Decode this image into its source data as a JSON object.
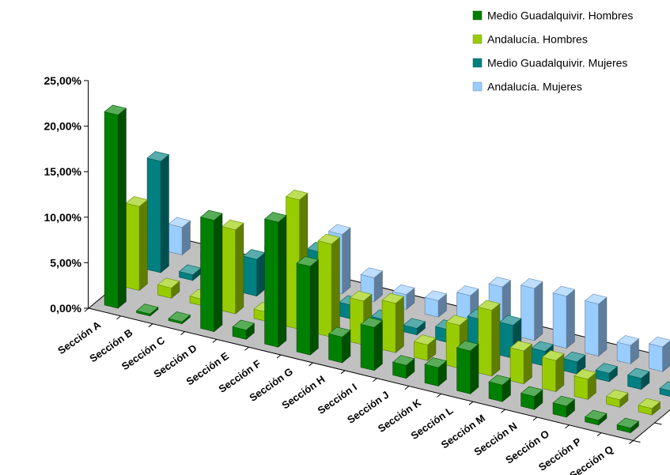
{
  "chart_data": {
    "type": "bar",
    "title": "",
    "xlabel": "",
    "ylabel": "",
    "ylim": [
      0,
      25
    ],
    "y_ticks": [
      "0,00%",
      "5,00%",
      "10,00%",
      "15,00%",
      "20,00%",
      "25,00%"
    ],
    "grid": false,
    "legend_position": "top-right",
    "categories": [
      "Sección A",
      "Sección B",
      "Sección C",
      "Sección D",
      "Sección E",
      "Sección F",
      "Sección G",
      "Sección H",
      "Sección I",
      "Sección J",
      "Sección K",
      "Sección L",
      "Sección M",
      "Sección N",
      "Sección O",
      "Sección P",
      "Sección Q"
    ],
    "series": [
      {
        "name": "Medio Guadalquivir. Hombres",
        "color": "#008000",
        "values": [
          21.0,
          0.0,
          0.0,
          12.0,
          0.8,
          13.5,
          9.5,
          2.6,
          4.5,
          1.2,
          1.8,
          4.5,
          1.6,
          1.2,
          1.0,
          0.3,
          0.3
        ]
      },
      {
        "name": "Andalucía. Hombres",
        "color": "#99CC00",
        "values": [
          9.0,
          0.9,
          0.5,
          9.0,
          0.8,
          14.0,
          10.0,
          4.6,
          5.2,
          1.5,
          4.5,
          7.0,
          3.4,
          3.2,
          2.0,
          0.6,
          0.5
        ]
      },
      {
        "name": "Medio Guadalquivir. Mujeres",
        "color": "#008080",
        "values": [
          12.0,
          0.4,
          0.0,
          3.8,
          0.3,
          6.3,
          1.3,
          0.6,
          0.5,
          1.2,
          3.2,
          3.4,
          1.4,
          1.1,
          0.7,
          1.0,
          0.4
        ]
      },
      {
        "name": "Andalucía. Mujeres",
        "color": "#99CCFF",
        "values": [
          2.8,
          0.4,
          0.0,
          3.0,
          0.3,
          6.3,
          2.4,
          1.4,
          1.6,
          3.0,
          4.8,
          5.5,
          5.5,
          5.5,
          1.8,
          2.5,
          0.5
        ]
      }
    ]
  }
}
